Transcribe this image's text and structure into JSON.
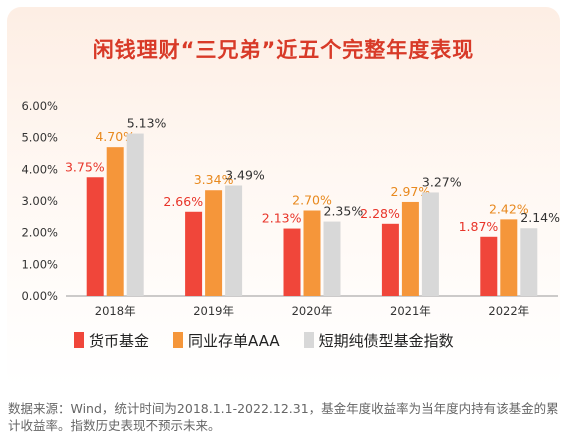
{
  "title": "闲钱理财“三兄弟”近五个完整年度表现",
  "chart_data": {
    "type": "bar",
    "categories": [
      "2018年",
      "2019年",
      "2020年",
      "2021年",
      "2022年"
    ],
    "series": [
      {
        "name": "货币基金",
        "values": [
          3.75,
          2.66,
          2.13,
          2.28,
          1.87
        ],
        "labels": [
          "3.75%",
          "2.66%",
          "2.13%",
          "2.28%",
          "1.87%"
        ],
        "color": "#f0463a",
        "label_color": "#e8352a"
      },
      {
        "name": "同业存单AAA",
        "values": [
          4.7,
          3.34,
          2.7,
          2.97,
          2.42
        ],
        "labels": [
          "4.70%",
          "3.34%",
          "2.70%",
          "2.97%",
          "2.42%"
        ],
        "color": "#f5963a",
        "label_color": "#e8891e"
      },
      {
        "name": "短期纯债型基金指数",
        "values": [
          5.13,
          3.49,
          2.35,
          3.27,
          2.14
        ],
        "labels": [
          "5.13%",
          "3.49%",
          "2.35%",
          "3.27%",
          "2.14%"
        ],
        "color": "#d8d8d8",
        "label_color": "#333333"
      }
    ],
    "ylim": [
      0,
      6
    ],
    "yticks": [
      "0.00%",
      "1.00%",
      "2.00%",
      "3.00%",
      "4.00%",
      "5.00%",
      "6.00%"
    ],
    "grid": false,
    "legend": "bottom"
  },
  "footnote": "数据来源：Wind，统计时间为2018.1.1-2022.12.31，基金年度收益率为当年度内持有该基金的累计收益率。指数历史表现不预示未来。"
}
